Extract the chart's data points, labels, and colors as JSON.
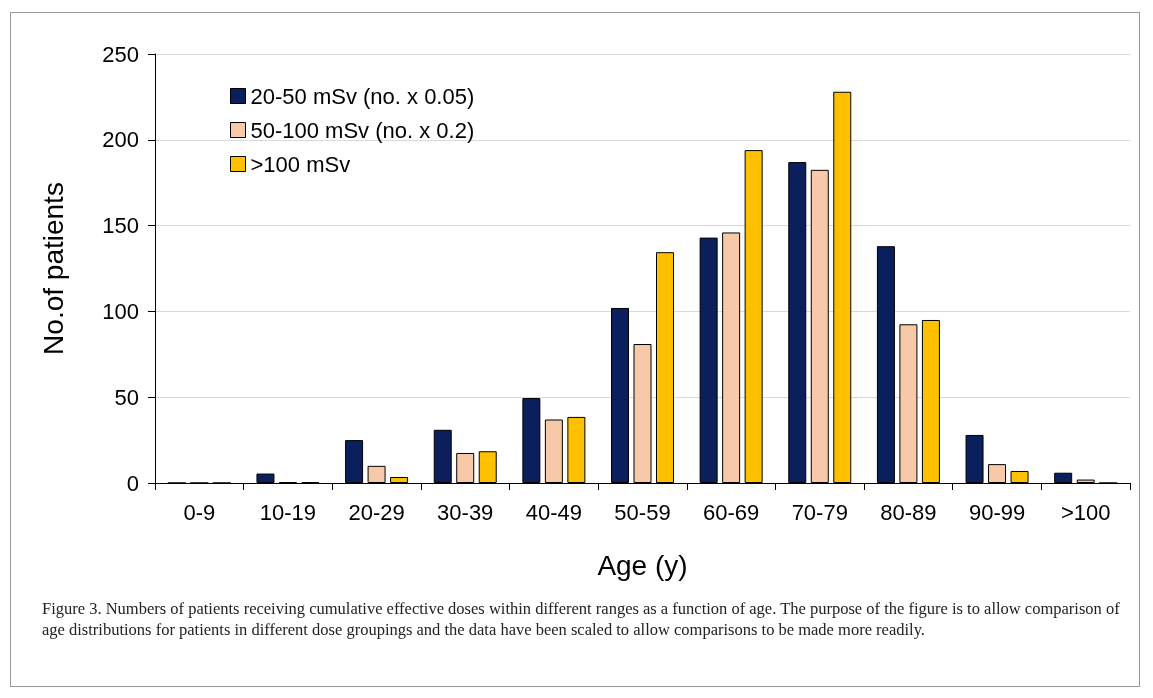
{
  "chart_data": {
    "type": "bar",
    "xlabel": "Age (y)",
    "ylabel": "No.of patients",
    "categories": [
      "0-9",
      "10-19",
      "20-29",
      "30-39",
      "40-49",
      "50-59",
      "60-69",
      "70-79",
      "80-89",
      "90-99",
      ">100"
    ],
    "series": [
      {
        "name": "20-50 mSv (no. x 0.05)",
        "color": "#0b1f5c",
        "values": [
          0,
          5.5,
          25,
          31,
          49.5,
          102,
          143,
          187,
          138,
          28,
          6
        ]
      },
      {
        "name": "50-100 mSv (no. x 0.2)",
        "color": "#f8c9a8",
        "values": [
          0,
          0.5,
          10,
          17.5,
          37,
          81,
          146,
          182.5,
          92.5,
          11,
          2
        ]
      },
      {
        "name": ">100 mSv",
        "color": "#ffc000",
        "values": [
          0,
          0.5,
          3.5,
          18.5,
          38.5,
          134.5,
          194,
          228,
          95,
          7,
          0
        ]
      }
    ],
    "ylim": [
      0,
      250
    ],
    "yticks": [
      0,
      50,
      100,
      150,
      200,
      250
    ],
    "grid": "y",
    "legend": "top left",
    "annotations": [
      "Figure 3. Numbers of patients receiving cumulative effective doses within different ranges as a function of age. The purpose of the figure is to allow comparison of age distributions for patients in different dose groupings and the data have been scaled to allow comparisons to be made more readily."
    ]
  }
}
